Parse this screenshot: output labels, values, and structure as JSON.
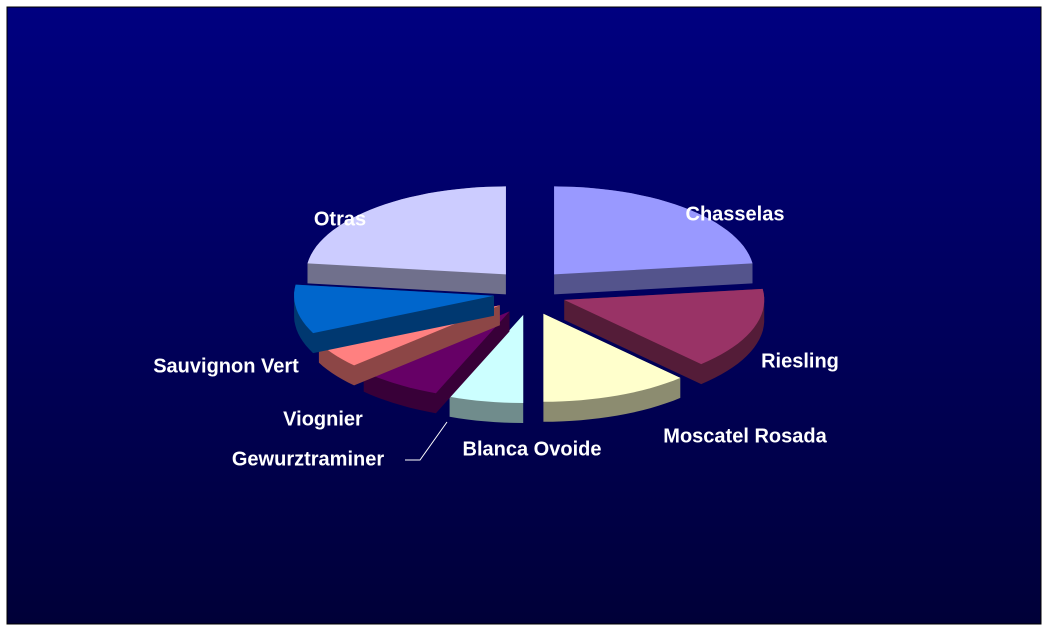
{
  "chart_data": {
    "type": "pie",
    "categories": [
      "Chasselas",
      "Riesling",
      "Moscatel Rosada",
      "Blanca Ovoide",
      "Gewurztraminer",
      "Viognier",
      "Sauvignon Vert",
      "Otras"
    ],
    "values": [
      23,
      15,
      12,
      6,
      7,
      5,
      9,
      23
    ],
    "colors": [
      "#9999ff",
      "#993366",
      "#ffffcc",
      "#ccffff",
      "#660066",
      "#ff8080",
      "#0066cc",
      "#ccccff"
    ]
  }
}
